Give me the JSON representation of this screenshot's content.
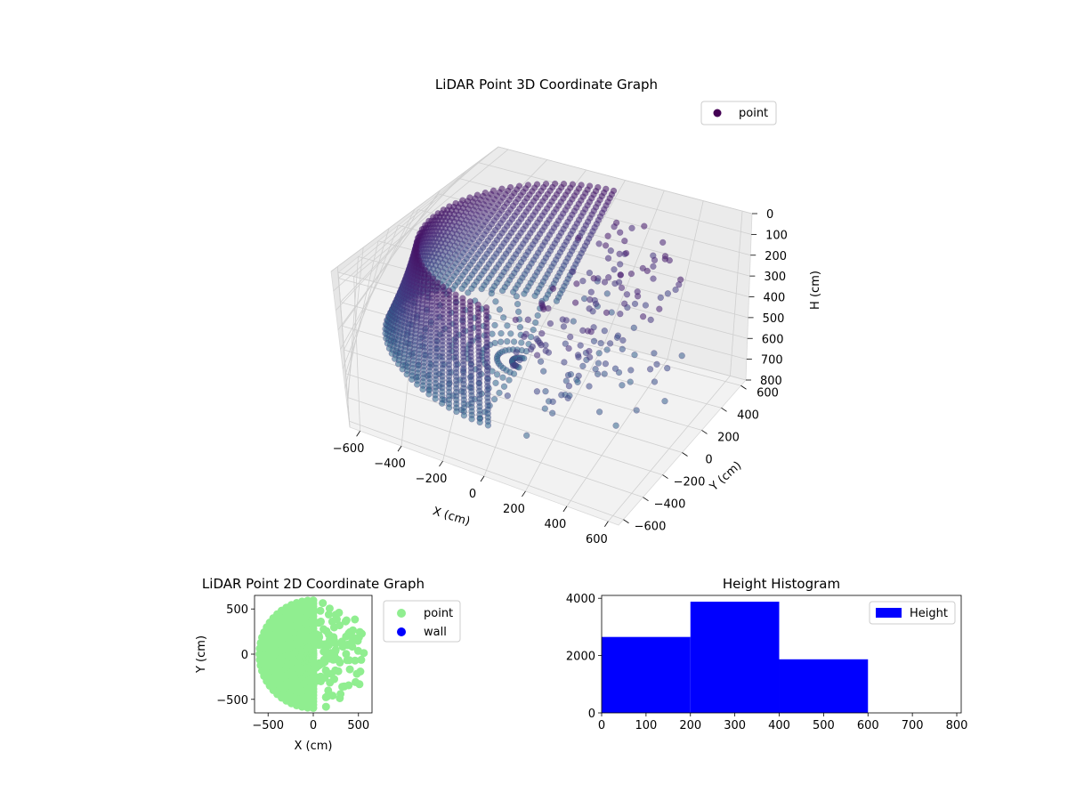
{
  "chart_data": [
    {
      "type": "scatter",
      "projection": "3d",
      "title": "LiDAR Point 3D Coordinate Graph",
      "xlabel": "X (cm)",
      "ylabel": "Y (cm)",
      "zlabel": "H (cm)",
      "xlim": [
        -650,
        650
      ],
      "ylim": [
        -650,
        650
      ],
      "zlim": [
        800,
        0
      ],
      "z_inverted": true,
      "xticks": [
        -600,
        -400,
        -200,
        0,
        200,
        400,
        600
      ],
      "yticks": [
        -600,
        -400,
        -200,
        0,
        200,
        400,
        600
      ],
      "zticks": [
        0,
        100,
        200,
        300,
        400,
        500,
        600,
        700,
        800
      ],
      "legend": {
        "placement": "top-right",
        "entries": [
          "point"
        ]
      },
      "series": [
        {
          "name": "point",
          "color": "#440154",
          "colormap": "viridis",
          "shape": "curved wall of radius about 550 cm spanning the left half (x < 0), with sparse scattered points on the right side",
          "wall_radius": 550,
          "wall_angle_range_deg": [
            90,
            270
          ],
          "height_range": [
            0,
            600
          ]
        }
      ],
      "grid": true
    },
    {
      "type": "scatter",
      "title": "LiDAR Point 2D Coordinate Graph",
      "xlabel": "X (cm)",
      "ylabel": "Y (cm)",
      "xlim": [
        -650,
        650
      ],
      "ylim": [
        -650,
        650
      ],
      "xticks": [
        -500,
        0,
        500
      ],
      "yticks": [
        -500,
        0,
        500
      ],
      "legend": {
        "placement": "outside-right",
        "entries": [
          "point",
          "wall"
        ]
      },
      "series": [
        {
          "name": "point",
          "color": "#90ee90",
          "shape": "filled half-disk of radius about 600 cm on the left side plus scattered points on the right"
        },
        {
          "name": "wall",
          "color": "#0000ff",
          "values": []
        }
      ],
      "grid": false
    },
    {
      "type": "bar",
      "subtype": "histogram",
      "title": "Height Histogram",
      "xlim": [
        0,
        810
      ],
      "ylim": [
        0,
        4100
      ],
      "xticks": [
        0,
        100,
        200,
        300,
        400,
        500,
        600,
        700,
        800
      ],
      "yticks": [
        0,
        2000,
        4000
      ],
      "legend": {
        "placement": "top-right",
        "entries": [
          "Height"
        ]
      },
      "bins": [
        [
          0,
          200
        ],
        [
          200,
          400
        ],
        [
          400,
          600
        ],
        [
          600,
          800
        ]
      ],
      "values": [
        2650,
        3880,
        1870,
        0
      ],
      "series": [
        {
          "name": "Height",
          "color": "#0000ff"
        }
      ],
      "grid": false
    }
  ]
}
